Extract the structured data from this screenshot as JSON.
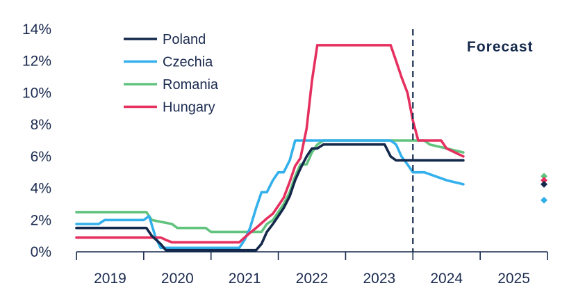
{
  "chart_data": {
    "type": "line",
    "title": "",
    "xlabel": "",
    "ylabel": "",
    "ylim": [
      0,
      14
    ],
    "xlim": [
      2019.0,
      2026.0
    ],
    "y_ticks": [
      0,
      2,
      4,
      6,
      8,
      10,
      12,
      14
    ],
    "y_tick_labels": [
      "0%",
      "2%",
      "4%",
      "6%",
      "8%",
      "10%",
      "12%",
      "14%"
    ],
    "x_tick_labels": [
      "2019",
      "2020",
      "2021",
      "2022",
      "2023",
      "2024",
      "2025"
    ],
    "legend_position": "top-left",
    "forecast_label": "Forecast",
    "forecast_start": 2024.0,
    "series": [
      {
        "name": "Poland",
        "color": "#14284b",
        "x": [
          2019.0,
          2020.04,
          2020.12,
          2020.25,
          2020.33,
          2021.67,
          2021.75,
          2021.83,
          2021.92,
          2022.0,
          2022.08,
          2022.17,
          2022.25,
          2022.33,
          2022.42,
          2022.5,
          2022.58,
          2022.67,
          2022.75,
          2023.58,
          2023.67,
          2023.75,
          2024.75
        ],
        "y": [
          1.5,
          1.5,
          1.0,
          0.5,
          0.1,
          0.1,
          0.5,
          1.25,
          1.75,
          2.25,
          2.75,
          3.5,
          4.5,
          5.25,
          6.0,
          6.5,
          6.5,
          6.75,
          6.75,
          6.75,
          6.0,
          5.75,
          5.75
        ]
      },
      {
        "name": "Czechia",
        "color": "#33b0ec",
        "x": [
          2019.0,
          2019.33,
          2019.42,
          2020.0,
          2020.08,
          2020.17,
          2020.25,
          2021.42,
          2021.5,
          2021.58,
          2021.67,
          2021.75,
          2021.83,
          2021.92,
          2022.0,
          2022.08,
          2022.17,
          2022.25,
          2022.33,
          2022.42,
          2022.5,
          2023.67,
          2023.75,
          2023.83,
          2023.92,
          2024.0,
          2024.17,
          2024.5,
          2024.75
        ],
        "y": [
          1.75,
          1.75,
          2.0,
          2.0,
          2.25,
          1.0,
          0.25,
          0.25,
          0.75,
          1.5,
          2.75,
          3.75,
          3.75,
          4.5,
          5.0,
          5.0,
          5.75,
          7.0,
          7.0,
          7.0,
          7.0,
          7.0,
          6.75,
          6.0,
          5.5,
          5.0,
          5.0,
          4.5,
          4.25
        ]
      },
      {
        "name": "Romania",
        "color": "#62c37e",
        "x": [
          2019.0,
          2020.04,
          2020.12,
          2020.42,
          2020.5,
          2020.92,
          2021.0,
          2021.75,
          2021.83,
          2021.92,
          2022.0,
          2022.08,
          2022.17,
          2022.25,
          2022.33,
          2022.42,
          2022.5,
          2022.58,
          2022.67,
          2022.75,
          2023.0,
          2024.17,
          2024.25,
          2024.75
        ],
        "y": [
          2.5,
          2.5,
          2.0,
          1.75,
          1.5,
          1.5,
          1.25,
          1.25,
          1.75,
          2.0,
          2.5,
          3.0,
          3.75,
          4.75,
          5.5,
          5.5,
          6.25,
          6.75,
          7.0,
          7.0,
          7.0,
          7.0,
          6.75,
          6.25
        ]
      },
      {
        "name": "Hungary",
        "color": "#e5305f",
        "x": [
          2019.0,
          2020.25,
          2020.33,
          2020.42,
          2021.42,
          2021.5,
          2021.58,
          2021.67,
          2021.75,
          2021.83,
          2021.92,
          2022.0,
          2022.08,
          2022.17,
          2022.25,
          2022.33,
          2022.42,
          2022.5,
          2022.58,
          2022.67,
          2023.67,
          2023.75,
          2023.83,
          2023.92,
          2024.0,
          2024.08,
          2024.25,
          2024.42,
          2024.5,
          2024.75
        ],
        "y": [
          0.9,
          0.9,
          0.75,
          0.6,
          0.6,
          0.9,
          1.2,
          1.5,
          1.8,
          2.1,
          2.4,
          2.9,
          3.4,
          4.4,
          5.4,
          5.9,
          7.75,
          10.75,
          13.0,
          13.0,
          13.0,
          12.0,
          11.0,
          10.0,
          8.25,
          7.0,
          7.0,
          7.0,
          6.5,
          6.0
        ]
      }
    ],
    "forecast_points": [
      {
        "series": "Romania",
        "x": 2026.0,
        "y": 4.75,
        "color": "#62c37e"
      },
      {
        "series": "Hungary",
        "x": 2026.0,
        "y": 4.5,
        "color": "#e5305f"
      },
      {
        "series": "Poland",
        "x": 2026.0,
        "y": 4.25,
        "color": "#14284b"
      },
      {
        "series": "Czechia",
        "x": 2026.0,
        "y": 3.25,
        "color": "#33b0ec"
      }
    ]
  }
}
